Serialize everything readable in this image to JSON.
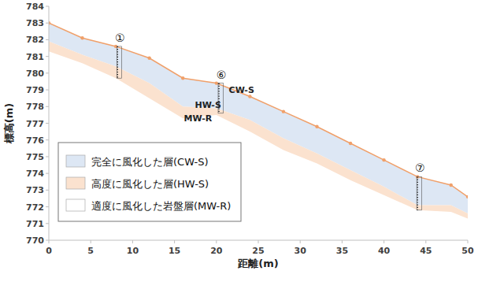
{
  "chart_data": {
    "type": "cross_section",
    "x_label": "距離(m)",
    "y_label": "標高(m)",
    "xlim": [
      0,
      50
    ],
    "ylim": [
      770,
      784
    ],
    "xticks": [
      0,
      5,
      10,
      15,
      20,
      25,
      30,
      35,
      40,
      45,
      50
    ],
    "yticks": [
      770,
      771,
      772,
      773,
      774,
      775,
      776,
      777,
      778,
      779,
      780,
      781,
      782,
      783,
      784
    ],
    "grid": false,
    "legend": "lower left",
    "x": [
      0,
      4,
      8,
      12,
      16,
      20,
      24,
      28,
      32,
      36,
      40,
      44,
      48,
      50
    ],
    "surface": {
      "color": "#f0a06a",
      "marker": "circle",
      "values": [
        783.0,
        782.1,
        781.6,
        780.9,
        779.7,
        779.4,
        778.6,
        777.7,
        776.8,
        775.8,
        774.8,
        773.8,
        773.3,
        772.6
      ]
    },
    "series": [
      {
        "name": "完全に風化した層(CW-S)",
        "color": "#dde7f4",
        "values": [
          781.9,
          781.1,
          780.4,
          779.4,
          778.0,
          777.9,
          777.2,
          776.1,
          775.2,
          774.2,
          773.2,
          772.1,
          772.1,
          771.6
        ]
      },
      {
        "name": "高度に風化した層(HW-S)",
        "color": "#fbe2cf",
        "values": [
          781.3,
          780.6,
          779.7,
          778.5,
          777.3,
          777.5,
          776.5,
          775.4,
          774.6,
          773.6,
          772.7,
          771.8,
          771.7,
          771.3
        ]
      },
      {
        "name": "適度に風化した岩盤層(MW-R)",
        "color": "#ffffff"
      }
    ],
    "boreholes": [
      {
        "label": "①",
        "x": 8.2,
        "top": 781.6,
        "bottom": 779.7
      },
      {
        "label": "⑥",
        "x": 20.3,
        "top": 779.4,
        "bottom": 777.6
      },
      {
        "label": "⑦",
        "x": 44.0,
        "top": 773.8,
        "bottom": 771.8
      }
    ],
    "annotations": [
      {
        "text": "CW-S",
        "x": 23.0,
        "y": 778.8
      },
      {
        "text": "HW-S",
        "x": 19.0,
        "y": 777.9
      },
      {
        "text": "MW-R",
        "x": 17.8,
        "y": 777.1
      }
    ]
  }
}
